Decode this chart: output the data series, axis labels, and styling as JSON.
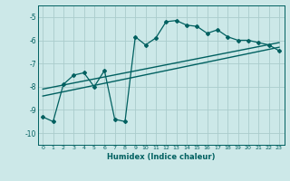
{
  "xlabel": "Humidex (Indice chaleur)",
  "bg_color": "#cce8e8",
  "grid_color": "#aacccc",
  "line_color": "#006060",
  "xlim": [
    -0.5,
    23.5
  ],
  "ylim": [
    -10.5,
    -4.5
  ],
  "yticks": [
    -10,
    -9,
    -8,
    -7,
    -6,
    -5
  ],
  "xticks": [
    0,
    1,
    2,
    3,
    4,
    5,
    6,
    7,
    8,
    9,
    10,
    11,
    12,
    13,
    14,
    15,
    16,
    17,
    18,
    19,
    20,
    21,
    22,
    23
  ],
  "series": [
    {
      "x": [
        0,
        1,
        2,
        3,
        4,
        5,
        6,
        7,
        8,
        9,
        10,
        11,
        12,
        13,
        14,
        15,
        16,
        17,
        18,
        19,
        20,
        21,
        22,
        23
      ],
      "y": [
        -9.3,
        -9.5,
        -7.9,
        -7.5,
        -7.4,
        -8.0,
        -7.3,
        -9.4,
        -9.5,
        -5.85,
        -6.2,
        -5.9,
        -5.2,
        -5.15,
        -5.35,
        -5.4,
        -5.7,
        -5.55,
        -5.85,
        -6.0,
        -6.0,
        -6.1,
        -6.2,
        -6.45
      ],
      "marker": "D",
      "markersize": 2.0,
      "linewidth": 0.9
    },
    {
      "x": [
        0,
        23
      ],
      "y": [
        -8.1,
        -6.1
      ],
      "marker": null,
      "linewidth": 1.0
    },
    {
      "x": [
        0,
        23
      ],
      "y": [
        -8.4,
        -6.3
      ],
      "marker": null,
      "linewidth": 1.0
    }
  ]
}
